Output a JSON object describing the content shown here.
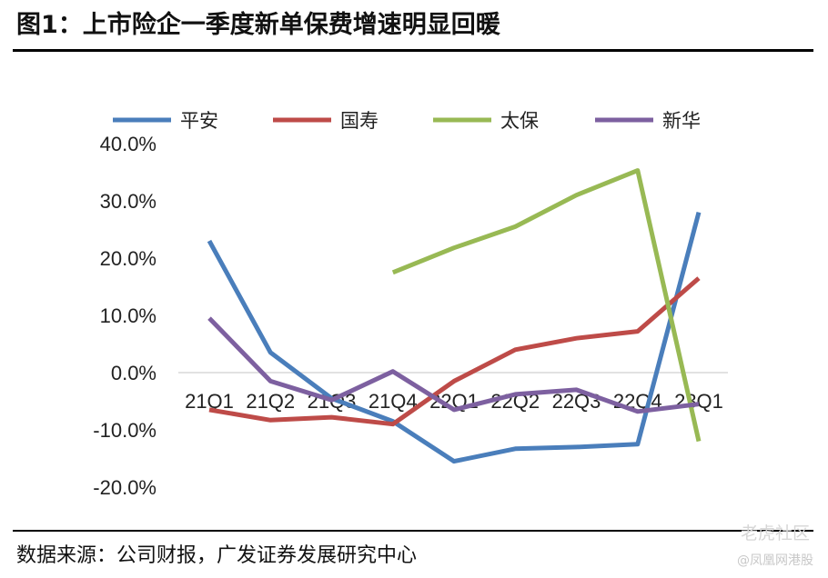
{
  "header": {
    "title": "图1：上市险企一季度新单保费增速明显回暖"
  },
  "footer": {
    "source": "数据来源：公司财报，广发证券发展研究中心"
  },
  "watermark": {
    "text": "老虎社区",
    "sub": "@凤凰网港股"
  },
  "colors": {
    "平安": "#4a7ebb",
    "国寿": "#be4b48",
    "太保": "#98b954",
    "新华": "#7d60a0"
  },
  "chart_data": {
    "type": "line",
    "categories": [
      "21Q1",
      "21Q2",
      "21Q3",
      "21Q4",
      "22Q1",
      "22Q2",
      "22Q3",
      "22Q4",
      "23Q1"
    ],
    "ylim": [
      -20,
      40
    ],
    "yticks": [
      "-20.0%",
      "-10.0%",
      "0.0%",
      "10.0%",
      "20.0%",
      "30.0%",
      "40.0%"
    ],
    "legend_position": "top",
    "series": [
      {
        "name": "平安",
        "values": [
          23.0,
          3.5,
          -4.5,
          -8.5,
          -15.5,
          -13.3,
          -13.0,
          -12.5,
          28.0
        ]
      },
      {
        "name": "国寿",
        "values": [
          -6.5,
          -8.3,
          -7.8,
          -9.0,
          -1.5,
          4.0,
          6.0,
          7.2,
          16.5
        ]
      },
      {
        "name": "太保",
        "values": [
          null,
          null,
          null,
          17.5,
          21.8,
          25.5,
          31.0,
          35.3,
          -12.0
        ]
      },
      {
        "name": "新华",
        "values": [
          9.5,
          -1.5,
          -4.8,
          0.2,
          -6.5,
          -3.8,
          -3.0,
          -6.8,
          -5.5
        ]
      }
    ]
  }
}
